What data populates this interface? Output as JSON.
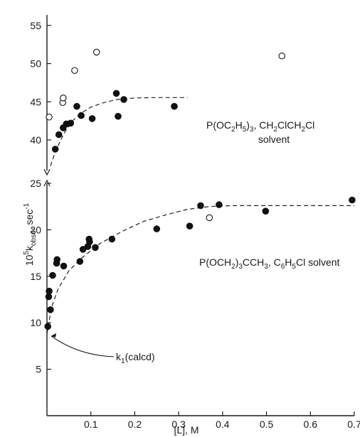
{
  "chart_data": {
    "type": "scatter",
    "xlabel": "[L], M",
    "ylabel_prefix": "10",
    "ylabel_sup": "5",
    "ylabel_k": "k",
    "ylabel_sub": "obsd",
    "ylabel_unit": ", sec",
    "ylabel_unit_sup": "-1",
    "xlim": [
      0,
      0.7
    ],
    "x_ticks": [
      0.1,
      0.2,
      0.3,
      0.4,
      0.5,
      0.6,
      0.7
    ],
    "x_tick_labels": [
      "0.1",
      "0.2",
      "0.3",
      "0.4",
      "0.5",
      "0.6",
      "0.7"
    ],
    "panels": [
      {
        "id": "upper",
        "ylim": [
          36,
          56
        ],
        "y_ticks": [
          40,
          45,
          50,
          55
        ],
        "y_tick_labels": [
          "40",
          "45",
          "50",
          "55"
        ],
        "series": [
          {
            "marker": "filled",
            "points": [
              [
                0.019,
                38.8
              ],
              [
                0.027,
                40.7
              ],
              [
                0.037,
                41.6
              ],
              [
                0.044,
                42.1
              ],
              [
                0.054,
                42.2
              ],
              [
                0.068,
                44.4
              ],
              [
                0.078,
                43.2
              ],
              [
                0.103,
                42.8
              ],
              [
                0.158,
                46.1
              ],
              [
                0.162,
                43.1
              ],
              [
                0.175,
                45.3
              ],
              [
                0.29,
                44.4
              ]
            ]
          },
          {
            "marker": "open",
            "points": [
              [
                0.005,
                43.0
              ],
              [
                0.036,
                44.9
              ],
              [
                0.037,
                45.5
              ],
              [
                0.063,
                49.1
              ],
              [
                0.113,
                51.5
              ],
              [
                0.535,
                51.0
              ]
            ]
          }
        ],
        "fit_curve": [
          [
            0.008,
            36.6
          ],
          [
            0.02,
            38.6
          ],
          [
            0.04,
            41.0
          ],
          [
            0.06,
            42.6
          ],
          [
            0.08,
            43.6
          ],
          [
            0.1,
            44.3
          ],
          [
            0.13,
            44.9
          ],
          [
            0.16,
            45.3
          ],
          [
            0.2,
            45.5
          ],
          [
            0.25,
            45.55
          ],
          [
            0.32,
            45.55
          ]
        ],
        "annotation_formula": {
          "parts": [
            {
              "t": "P(OC",
              "k": "n"
            },
            {
              "t": "2",
              "k": "sub"
            },
            {
              "t": "H",
              "k": "n"
            },
            {
              "t": "5",
              "k": "sub"
            },
            {
              "t": ")",
              "k": "n"
            },
            {
              "t": "3",
              "k": "sub"
            },
            {
              "t": ", CH",
              "k": "n"
            },
            {
              "t": "2",
              "k": "sub"
            },
            {
              "t": "ClCH",
              "k": "n"
            },
            {
              "t": "2",
              "k": "sub"
            },
            {
              "t": "Cl",
              "k": "n"
            }
          ]
        },
        "annotation_second_line": "solvent"
      },
      {
        "id": "lower",
        "ylim": [
          0,
          25
        ],
        "y_ticks": [
          5,
          10,
          15,
          20,
          25
        ],
        "y_tick_labels": [
          "5",
          "10",
          "15",
          "20",
          "25"
        ],
        "series": [
          {
            "marker": "filled",
            "points": [
              [
                0.002,
                9.6
              ],
              [
                0.004,
                12.8
              ],
              [
                0.005,
                13.4
              ],
              [
                0.008,
                11.4
              ],
              [
                0.013,
                15.1
              ],
              [
                0.022,
                16.4
              ],
              [
                0.023,
                16.8
              ],
              [
                0.038,
                16.1
              ],
              [
                0.075,
                16.6
              ],
              [
                0.082,
                17.9
              ],
              [
                0.093,
                18.2
              ],
              [
                0.096,
                19.0
              ],
              [
                0.097,
                18.7
              ],
              [
                0.11,
                18.1
              ],
              [
                0.148,
                19.0
              ],
              [
                0.25,
                20.1
              ],
              [
                0.325,
                20.4
              ],
              [
                0.35,
                22.6
              ],
              [
                0.392,
                22.7
              ],
              [
                0.498,
                22.0
              ],
              [
                0.695,
                23.2
              ]
            ]
          },
          {
            "marker": "open",
            "points": [
              [
                0.37,
                21.3
              ]
            ]
          }
        ],
        "fit_curve": [
          [
            0.0,
            8.8
          ],
          [
            0.01,
            11.6
          ],
          [
            0.025,
            13.6
          ],
          [
            0.05,
            15.6
          ],
          [
            0.08,
            17.0
          ],
          [
            0.12,
            18.5
          ],
          [
            0.17,
            19.8
          ],
          [
            0.22,
            20.9
          ],
          [
            0.27,
            21.6
          ],
          [
            0.32,
            22.2
          ],
          [
            0.37,
            22.5
          ],
          [
            0.42,
            22.6
          ],
          [
            0.5,
            22.6
          ],
          [
            0.6,
            22.6
          ],
          [
            0.7,
            22.6
          ]
        ],
        "annotation_formula": {
          "parts": [
            {
              "t": "P(OCH",
              "k": "n"
            },
            {
              "t": "2",
              "k": "sub"
            },
            {
              "t": ")",
              "k": "n"
            },
            {
              "t": "3",
              "k": "sub"
            },
            {
              "t": "CCH",
              "k": "n"
            },
            {
              "t": "3",
              "k": "sub"
            },
            {
              "t": ", C",
              "k": "n"
            },
            {
              "t": "6",
              "k": "sub"
            },
            {
              "t": "H",
              "k": "n"
            },
            {
              "t": "5",
              "k": "sub"
            },
            {
              "t": "Cl solvent",
              "k": "n"
            }
          ]
        },
        "k1_label_main": "k",
        "k1_label_sub": "1",
        "k1_label_rest": "(calcd)",
        "k1_arrow_target": [
          0.0,
          8.8
        ]
      }
    ]
  }
}
